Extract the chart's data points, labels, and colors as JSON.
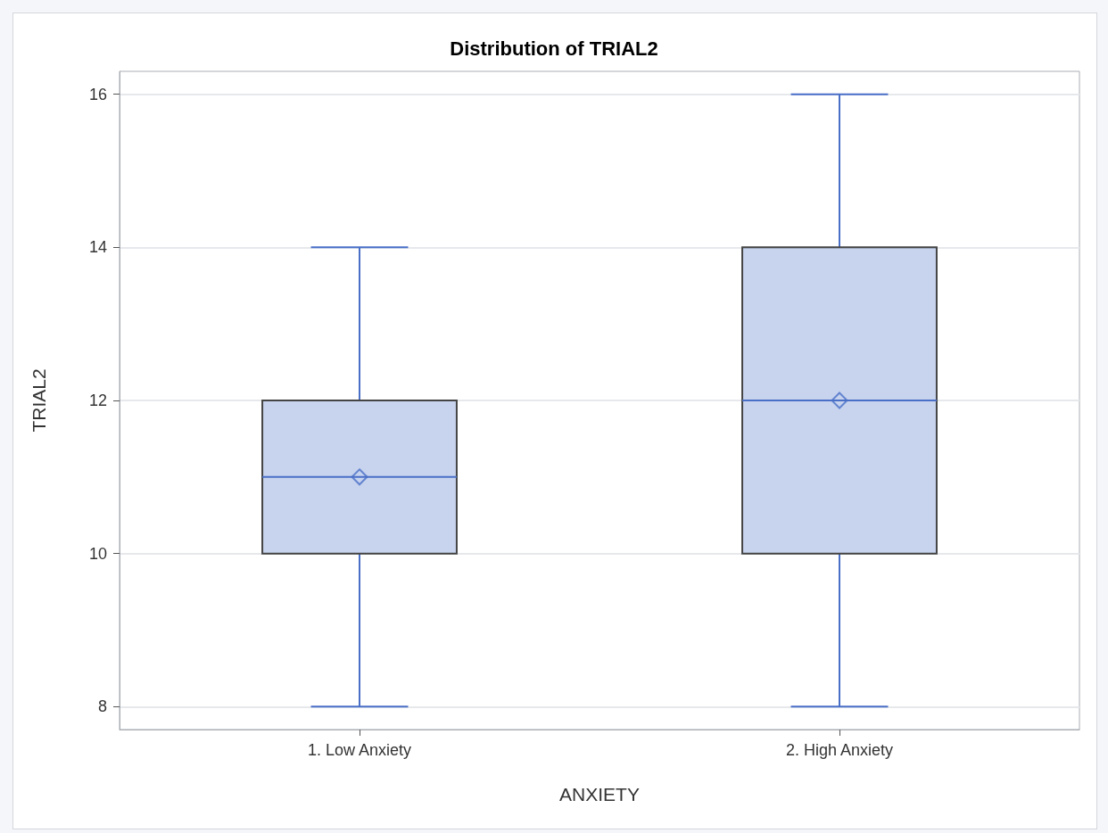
{
  "chart_data": {
    "type": "box",
    "title": "Distribution of TRIAL2",
    "xlabel": "ANXIETY",
    "ylabel": "TRIAL2",
    "categories": [
      "1. Low Anxiety",
      "2. High Anxiety"
    ],
    "boxes": [
      {
        "low": 8,
        "q1": 10,
        "median": 11,
        "q3": 12,
        "high": 14,
        "mean": 11
      },
      {
        "low": 8,
        "q1": 10,
        "median": 12,
        "q3": 14,
        "high": 16,
        "mean": 12
      }
    ],
    "color": "#4a6fc7",
    "ylim": [
      7.7,
      16.3
    ],
    "yticks": [
      8,
      10,
      12,
      14,
      16
    ],
    "grid": "y",
    "marker": "diamond",
    "legend": false
  }
}
